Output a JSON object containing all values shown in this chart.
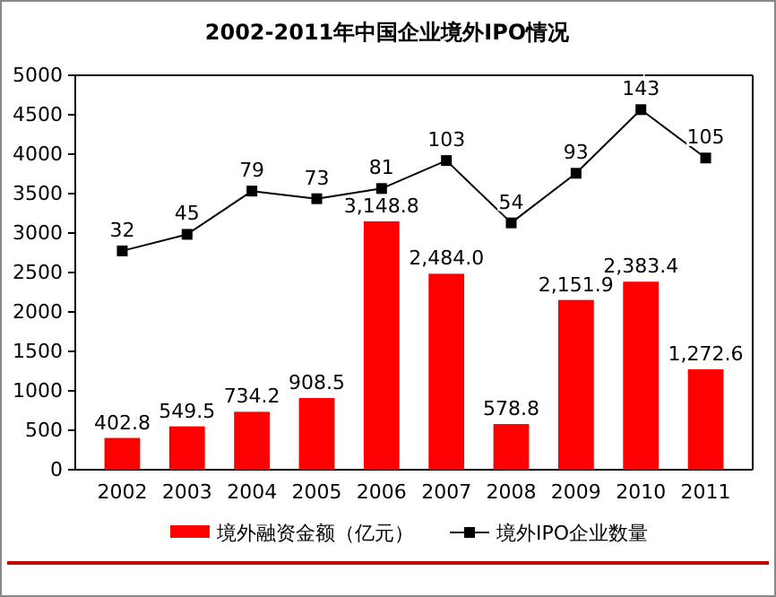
{
  "chart_data": {
    "type": "bar",
    "title": "2002-2011年中国企业境外IPO情况",
    "categories": [
      "2002",
      "2003",
      "2004",
      "2005",
      "2006",
      "2007",
      "2008",
      "2009",
      "2010",
      "2011"
    ],
    "series": [
      {
        "name": "境外融资金额（亿元）",
        "color": "#ff0000",
        "values": [
          402.8,
          549.5,
          734.2,
          908.5,
          3148.8,
          2484.0,
          578.8,
          2151.9,
          2383.4,
          1272.6
        ],
        "value_labels": [
          "402.8",
          "549.5",
          "734.2",
          "908.5",
          "3,148.8",
          "2,484.0",
          "578.8",
          "2,151.9",
          "2,383.4",
          "1,272.6"
        ]
      },
      {
        "name": "境外IPO企业数量",
        "type": "line",
        "axis": "y2",
        "color": "#000000",
        "marker": "square",
        "values": [
          32,
          45,
          79,
          73,
          81,
          103,
          54,
          93,
          143,
          105
        ],
        "value_labels": [
          "32",
          "45",
          "79",
          "73",
          "81",
          "103",
          "54",
          "93",
          "143",
          "105"
        ]
      }
    ],
    "ylim": [
      0,
      5000
    ],
    "yticks": [
      0,
      500,
      1000,
      1500,
      2000,
      2500,
      3000,
      3500,
      4000,
      4500,
      5000
    ],
    "y2lim": [
      -140,
      170
    ],
    "legend": "bottom",
    "grid": false
  }
}
